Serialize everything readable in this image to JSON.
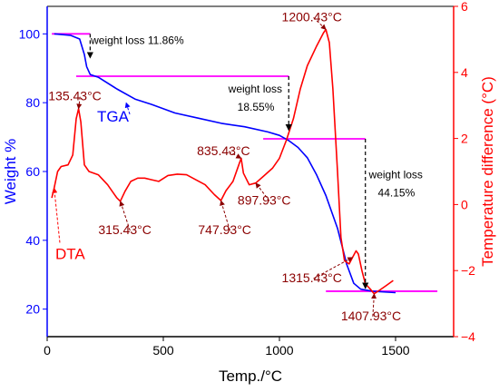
{
  "chart_data": {
    "type": "line",
    "x_axis": {
      "label": "Temp./°C",
      "range": [
        0,
        1750
      ],
      "ticks": [
        0,
        500,
        1000,
        1500
      ],
      "tick_labels": [
        "0",
        "500",
        "1000",
        "1500"
      ]
    },
    "y_left": {
      "label": "Weight %",
      "range": [
        12,
        108
      ],
      "ticks": [
        20,
        40,
        60,
        80,
        100
      ],
      "tick_labels": [
        "20",
        "40",
        "60",
        "80",
        "100"
      ],
      "color": "#0000ff"
    },
    "y_right": {
      "label": "Temperature difference (°C)",
      "range": [
        -4,
        6
      ],
      "ticks": [
        -4,
        -2,
        0,
        2,
        4,
        6
      ],
      "tick_labels": [
        "−4",
        "−2",
        "0",
        "2",
        "4",
        "6"
      ],
      "color": "#ff0000"
    },
    "grid": false,
    "series": [
      {
        "name": "TGA",
        "axis": "left",
        "color": "#0000ff",
        "points": [
          [
            30,
            100
          ],
          [
            100,
            99.6
          ],
          [
            140,
            98.5
          ],
          [
            160,
            94
          ],
          [
            170,
            90.5
          ],
          [
            185,
            88.2
          ],
          [
            220,
            87.4
          ],
          [
            300,
            84
          ],
          [
            380,
            81
          ],
          [
            450,
            79.5
          ],
          [
            550,
            77
          ],
          [
            650,
            75.5
          ],
          [
            750,
            74
          ],
          [
            850,
            73
          ],
          [
            950,
            71.5
          ],
          [
            1000,
            70.5
          ],
          [
            1040,
            69
          ],
          [
            1080,
            67
          ],
          [
            1120,
            64
          ],
          [
            1160,
            59
          ],
          [
            1200,
            53
          ],
          [
            1250,
            43.5
          ],
          [
            1290,
            33
          ],
          [
            1320,
            27.5
          ],
          [
            1350,
            25.8
          ],
          [
            1400,
            25.2
          ],
          [
            1500,
            24.8
          ]
        ]
      },
      {
        "name": "DTA",
        "axis": "right",
        "color": "#ff0000",
        "points": [
          [
            20,
            0.2
          ],
          [
            30,
            0.5
          ],
          [
            45,
            1.0
          ],
          [
            60,
            1.15
          ],
          [
            90,
            1.2
          ],
          [
            110,
            1.5
          ],
          [
            125,
            2.6
          ],
          [
            135,
            2.9
          ],
          [
            145,
            2.5
          ],
          [
            160,
            1.2
          ],
          [
            180,
            1.0
          ],
          [
            220,
            0.9
          ],
          [
            260,
            0.6
          ],
          [
            300,
            0.2
          ],
          [
            315,
            0.1
          ],
          [
            335,
            0.4
          ],
          [
            360,
            0.7
          ],
          [
            390,
            0.8
          ],
          [
            420,
            0.8
          ],
          [
            450,
            0.75
          ],
          [
            480,
            0.7
          ],
          [
            520,
            0.88
          ],
          [
            560,
            0.92
          ],
          [
            600,
            0.9
          ],
          [
            640,
            0.75
          ],
          [
            680,
            0.6
          ],
          [
            720,
            0.3
          ],
          [
            748,
            0.12
          ],
          [
            770,
            0.42
          ],
          [
            800,
            0.7
          ],
          [
            825,
            1.2
          ],
          [
            835,
            1.4
          ],
          [
            845,
            0.95
          ],
          [
            870,
            0.6
          ],
          [
            898,
            0.65
          ],
          [
            930,
            0.85
          ],
          [
            970,
            1.1
          ],
          [
            1000,
            1.4
          ],
          [
            1030,
            1.95
          ],
          [
            1060,
            2.6
          ],
          [
            1090,
            3.5
          ],
          [
            1120,
            4.2
          ],
          [
            1160,
            4.8
          ],
          [
            1190,
            5.2
          ],
          [
            1200,
            5.3
          ],
          [
            1215,
            4.9
          ],
          [
            1230,
            3.5
          ],
          [
            1250,
            1.0
          ],
          [
            1265,
            -1.0
          ],
          [
            1280,
            -1.7
          ],
          [
            1300,
            -1.8
          ],
          [
            1315,
            -1.6
          ],
          [
            1330,
            -1.4
          ],
          [
            1340,
            -1.5
          ],
          [
            1355,
            -2.0
          ],
          [
            1370,
            -2.4
          ],
          [
            1390,
            -2.55
          ],
          [
            1408,
            -2.7
          ],
          [
            1430,
            -2.6
          ],
          [
            1460,
            -2.45
          ],
          [
            1490,
            -2.3
          ]
        ]
      }
    ],
    "reference_lines": [
      {
        "from": [
          20,
          100
        ],
        "to": [
          185,
          100
        ],
        "color": "#ff00ff"
      },
      {
        "from": [
          125,
          87.7
        ],
        "to": [
          1040,
          87.7
        ],
        "color": "#ff00ff"
      },
      {
        "from": [
          930,
          69.5
        ],
        "to": [
          1370,
          69.5
        ],
        "color": "#ff00ff"
      },
      {
        "from": [
          1200,
          25.2
        ],
        "to": [
          1680,
          25.2
        ],
        "color": "#ff00ff"
      }
    ],
    "weight_loss_annotations": [
      {
        "text_lines": [
          "weight loss 11.86%"
        ],
        "arrow_x": 185,
        "arrow_from": 100,
        "arrow_to": 93,
        "text_x": 188,
        "text_y": 97
      },
      {
        "text_lines": [
          "weight loss",
          "18.55%"
        ],
        "arrow_x": 1040,
        "arrow_from": 87.7,
        "arrow_to": 72,
        "text_x": 780,
        "text_y": 83
      },
      {
        "text_lines": [
          "weight loss",
          "44.15%"
        ],
        "arrow_x": 1370,
        "arrow_from": 69.5,
        "arrow_to": 26,
        "text_x": 1385,
        "text_y": 58
      }
    ],
    "peak_labels": [
      {
        "text": "135.43°C",
        "x": 135,
        "y": 2.9,
        "label_x": 5,
        "label_y": 3.15
      },
      {
        "text": "315.43°C",
        "x": 315,
        "y": 0.1,
        "label_x": 220,
        "label_y": -0.9
      },
      {
        "text": "747.93°C",
        "x": 748,
        "y": 0.12,
        "label_x": 650,
        "label_y": -0.9
      },
      {
        "text": "835.43°C",
        "x": 835,
        "y": 1.4,
        "label_x": 645,
        "label_y": 1.5
      },
      {
        "text": "897.93°C",
        "x": 898,
        "y": 0.65,
        "label_x": 820,
        "label_y": 0.0
      },
      {
        "text": "1200.43°C",
        "x": 1200,
        "y": 5.3,
        "label_x": 1010,
        "label_y": 5.55
      },
      {
        "text": "1315.43°C",
        "x": 1315,
        "y": -1.6,
        "label_x": 1010,
        "label_y": -2.35
      },
      {
        "text": "1407.93°C",
        "x": 1408,
        "y": -2.7,
        "label_x": 1265,
        "label_y": -3.5
      }
    ],
    "series_labels": [
      {
        "text": "TGA",
        "x": 215,
        "y": 74.5,
        "color": "#0000ff",
        "arrow_to": [
          340,
          80
        ]
      },
      {
        "text": "DTA",
        "x": 35,
        "y": -1.65,
        "color": "#ff0000",
        "arrow_to": [
          30,
          0.5
        ]
      }
    ]
  }
}
